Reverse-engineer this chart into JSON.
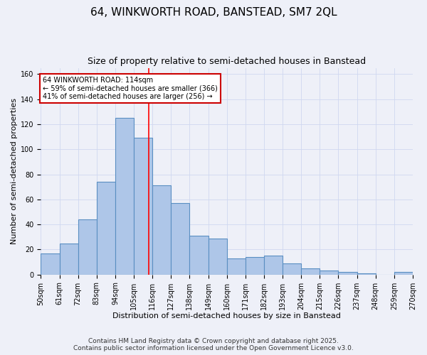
{
  "title": "64, WINKWORTH ROAD, BANSTEAD, SM7 2QL",
  "subtitle": "Size of property relative to semi-detached houses in Banstead",
  "xlabel": "Distribution of semi-detached houses by size in Banstead",
  "ylabel": "Number of semi-detached properties",
  "bin_edges": [
    50,
    61,
    72,
    83,
    94,
    105,
    116,
    127,
    138,
    149,
    160,
    171,
    182,
    193,
    204,
    215,
    226,
    237,
    248,
    259,
    270
  ],
  "bar_heights": [
    17,
    25,
    44,
    74,
    125,
    109,
    71,
    57,
    31,
    29,
    13,
    14,
    15,
    9,
    5,
    3,
    2,
    1,
    0,
    2
  ],
  "bar_color": "#aec6e8",
  "bar_edge_color": "#5a8fc2",
  "grid_color": "#d0d8f0",
  "background_color": "#eef0f8",
  "red_line_x": 114,
  "annotation_text": "64 WINKWORTH ROAD: 114sqm\n← 59% of semi-detached houses are smaller (366)\n41% of semi-detached houses are larger (256) →",
  "annotation_box_color": "#ffffff",
  "annotation_box_edge_color": "#cc0000",
  "footnote_line1": "Contains HM Land Registry data © Crown copyright and database right 2025.",
  "footnote_line2": "Contains public sector information licensed under the Open Government Licence v3.0.",
  "ylim": [
    0,
    165
  ],
  "yticks": [
    0,
    20,
    40,
    60,
    80,
    100,
    120,
    140,
    160
  ],
  "title_fontsize": 11,
  "subtitle_fontsize": 9,
  "label_fontsize": 8,
  "tick_fontsize": 7,
  "footnote_fontsize": 6.5,
  "annotation_fontsize": 7
}
